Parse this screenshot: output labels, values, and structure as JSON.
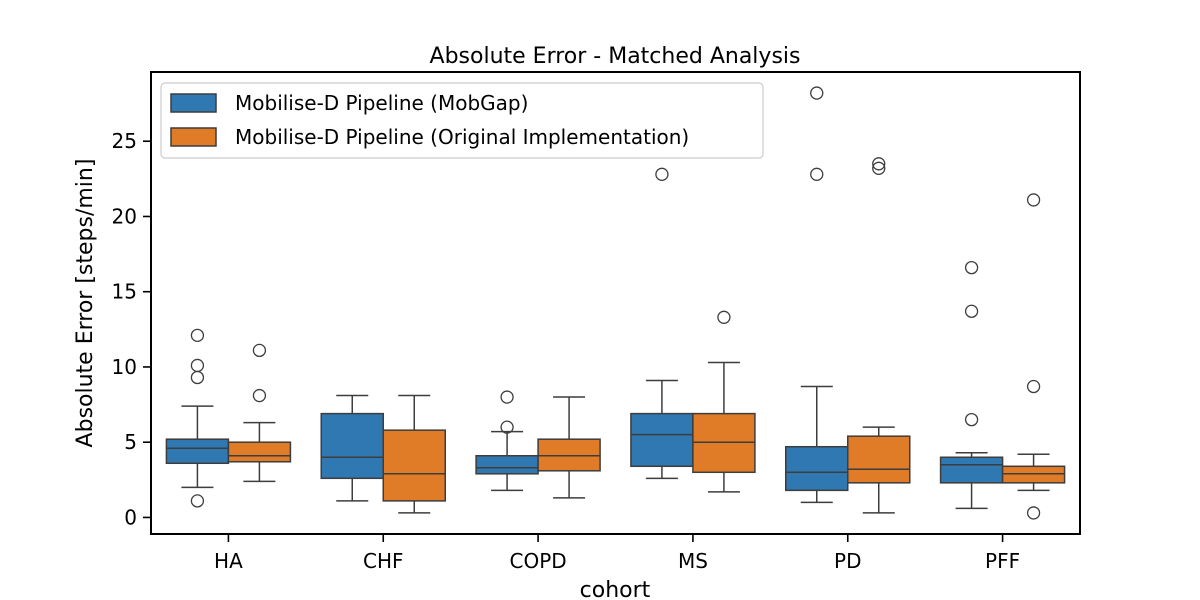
{
  "chart_data": {
    "type": "box",
    "title": "Absolute Error - Matched Analysis",
    "xlabel": "cohort",
    "ylabel": "Absolute Error [steps/min]",
    "ylim": [
      -1.1,
      29.6
    ],
    "yticks": [
      0,
      5,
      10,
      15,
      20,
      25
    ],
    "grid": false,
    "legend_position": "top-left",
    "categories": [
      "HA",
      "CHF",
      "COPD",
      "MS",
      "PD",
      "PFF"
    ],
    "series": [
      {
        "name": "Mobilise-D Pipeline (MobGap)",
        "color": "#2f78b1",
        "boxes": [
          {
            "whisker_low": 2.0,
            "q1": 3.6,
            "median": 4.6,
            "q3": 5.2,
            "whisker_high": 7.4,
            "outliers": [
              12.1,
              10.1,
              9.3,
              1.1
            ]
          },
          {
            "whisker_low": 1.1,
            "q1": 2.6,
            "median": 4.0,
            "q3": 6.9,
            "whisker_high": 8.1,
            "outliers": []
          },
          {
            "whisker_low": 1.8,
            "q1": 2.9,
            "median": 3.3,
            "q3": 4.1,
            "whisker_high": 5.7,
            "outliers": [
              8.0,
              6.0
            ]
          },
          {
            "whisker_low": 2.6,
            "q1": 3.4,
            "median": 5.5,
            "q3": 6.9,
            "whisker_high": 9.1,
            "outliers": [
              22.8
            ]
          },
          {
            "whisker_low": 1.0,
            "q1": 1.8,
            "median": 3.0,
            "q3": 4.7,
            "whisker_high": 8.7,
            "outliers": [
              28.2,
              22.8
            ]
          },
          {
            "whisker_low": 0.6,
            "q1": 2.3,
            "median": 3.5,
            "q3": 4.0,
            "whisker_high": 4.3,
            "outliers": [
              16.6,
              13.7,
              6.5
            ]
          }
        ]
      },
      {
        "name": "Mobilise-D Pipeline (Original Implementation)",
        "color": "#e07b28",
        "boxes": [
          {
            "whisker_low": 2.4,
            "q1": 3.7,
            "median": 4.1,
            "q3": 5.0,
            "whisker_high": 6.3,
            "outliers": [
              11.1,
              8.1
            ]
          },
          {
            "whisker_low": 0.3,
            "q1": 1.1,
            "median": 2.9,
            "q3": 5.8,
            "whisker_high": 8.1,
            "outliers": []
          },
          {
            "whisker_low": 1.3,
            "q1": 3.1,
            "median": 4.1,
            "q3": 5.2,
            "whisker_high": 8.0,
            "outliers": []
          },
          {
            "whisker_low": 1.7,
            "q1": 3.0,
            "median": 5.0,
            "q3": 6.9,
            "whisker_high": 10.3,
            "outliers": [
              13.3
            ]
          },
          {
            "whisker_low": 0.3,
            "q1": 2.3,
            "median": 3.2,
            "q3": 5.4,
            "whisker_high": 6.0,
            "outliers": [
              23.5,
              23.2
            ]
          },
          {
            "whisker_low": 1.8,
            "q1": 2.3,
            "median": 2.9,
            "q3": 3.4,
            "whisker_high": 4.2,
            "outliers": [
              21.1,
              8.7,
              0.3
            ]
          }
        ]
      }
    ]
  }
}
